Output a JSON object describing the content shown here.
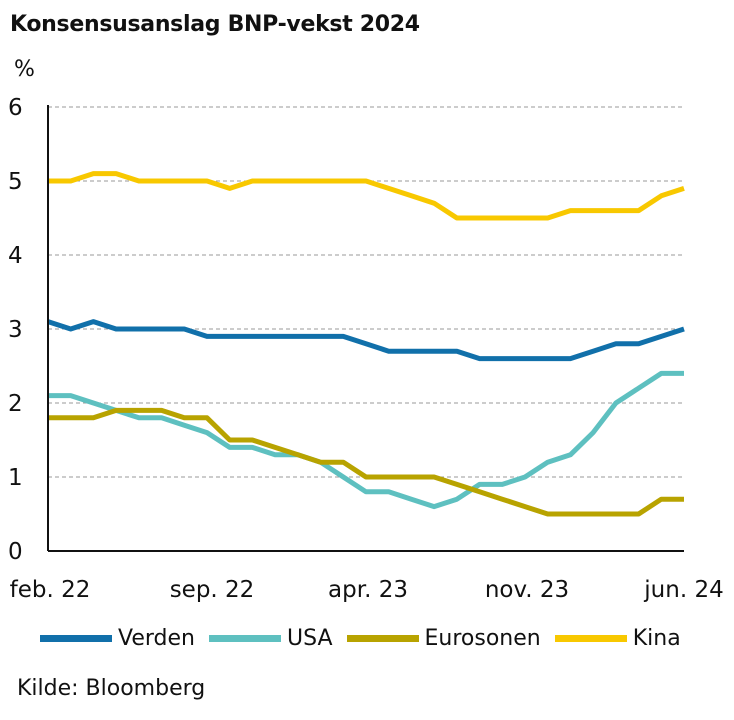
{
  "title": "Konsensusanslag BNP-vekst 2024",
  "source": "Kilde: Bloomberg",
  "chart_data": {
    "type": "line",
    "title": "Konsensusanslag BNP-vekst 2024",
    "ylabel": "%",
    "xlabel": "",
    "ylim": [
      0,
      6
    ],
    "yticks": [
      "0",
      "1",
      "2",
      "3",
      "4",
      "5",
      "6"
    ],
    "xticks": [
      "feb. 22",
      "sep. 22",
      "apr. 23",
      "nov. 23",
      "jun. 24"
    ],
    "x_range": [
      "2022-02",
      "2024-06"
    ],
    "grid": "horizontal dashed",
    "legend_position": "bottom",
    "x": [
      "2022-02",
      "2022-03",
      "2022-04",
      "2022-05",
      "2022-06",
      "2022-07",
      "2022-08",
      "2022-09",
      "2022-10",
      "2022-11",
      "2022-12",
      "2023-01",
      "2023-02",
      "2023-03",
      "2023-04",
      "2023-05",
      "2023-06",
      "2023-07",
      "2023-08",
      "2023-09",
      "2023-10",
      "2023-11",
      "2023-12",
      "2024-01",
      "2024-02",
      "2024-03",
      "2024-04",
      "2024-05",
      "2024-06"
    ],
    "series": [
      {
        "name": "Verden",
        "color": "#1170aa",
        "values": [
          3.1,
          3.0,
          3.1,
          3.0,
          3.0,
          3.0,
          3.0,
          2.9,
          2.9,
          2.9,
          2.9,
          2.9,
          2.9,
          2.9,
          2.8,
          2.7,
          2.7,
          2.7,
          2.7,
          2.6,
          2.6,
          2.6,
          2.6,
          2.6,
          2.7,
          2.8,
          2.8,
          2.9,
          3.0
        ]
      },
      {
        "name": "USA",
        "color": "#5ec0c0",
        "values": [
          2.1,
          2.1,
          2.0,
          1.9,
          1.8,
          1.8,
          1.7,
          1.6,
          1.4,
          1.4,
          1.3,
          1.3,
          1.2,
          1.0,
          0.8,
          0.8,
          0.7,
          0.6,
          0.7,
          0.9,
          0.9,
          1.0,
          1.2,
          1.3,
          1.6,
          2.0,
          2.2,
          2.4,
          2.4
        ]
      },
      {
        "name": "Eurosonen",
        "color": "#b8a300",
        "values": [
          1.8,
          1.8,
          1.8,
          1.9,
          1.9,
          1.9,
          1.8,
          1.8,
          1.5,
          1.5,
          1.4,
          1.3,
          1.2,
          1.2,
          1.0,
          1.0,
          1.0,
          1.0,
          0.9,
          0.8,
          0.7,
          0.6,
          0.5,
          0.5,
          0.5,
          0.5,
          0.5,
          0.7,
          0.7
        ]
      },
      {
        "name": "Kina",
        "color": "#f8c800",
        "values": [
          5.0,
          5.0,
          5.1,
          5.1,
          5.0,
          5.0,
          5.0,
          5.0,
          4.9,
          5.0,
          5.0,
          5.0,
          5.0,
          5.0,
          5.0,
          4.9,
          4.8,
          4.7,
          4.5,
          4.5,
          4.5,
          4.5,
          4.5,
          4.6,
          4.6,
          4.6,
          4.6,
          4.8,
          4.9
        ]
      }
    ]
  }
}
